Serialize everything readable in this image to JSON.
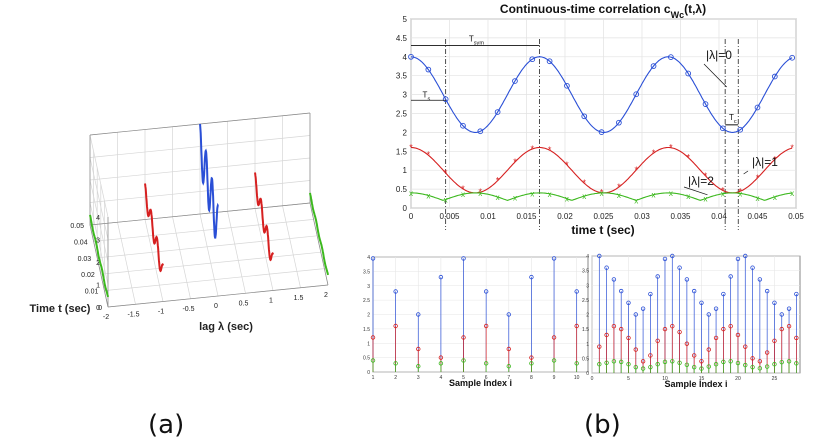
{
  "captions": {
    "a": "(a)",
    "b": "(b)"
  },
  "colors": {
    "lambda0": "#2a4fd6",
    "lambda1": "#d62020",
    "lambda2": "#3cb81e",
    "guide": "#222222"
  },
  "chart_data": [
    {
      "id": "a",
      "type": "line",
      "subtype": "3d",
      "title": "",
      "xlabel": "lag λ (sec)",
      "ylabel": "Time t (sec)",
      "zlabel": "",
      "x_ticks": [
        "-2",
        "-1.5",
        "-1",
        "-0.5",
        "0",
        "0.5",
        "1",
        "1.5",
        "2"
      ],
      "y_ticks": [
        "0",
        "0.01",
        "0.02",
        "0.03",
        "0.04",
        "0.05"
      ],
      "z_ticks": [
        "0",
        "1",
        "2",
        "3",
        "4"
      ],
      "grid": true,
      "series": [
        {
          "lag": -2,
          "color": "#3cb81e",
          "offset": 0.4,
          "amp": 0.05
        },
        {
          "lag": -1,
          "color": "#d62020",
          "offset": 1.2,
          "amp": 0.4
        },
        {
          "lag": 0,
          "color": "#2a4fd6",
          "offset": 3.0,
          "amp": 1.0
        },
        {
          "lag": 1,
          "color": "#d62020",
          "offset": 1.2,
          "amp": 0.4
        },
        {
          "lag": 2,
          "color": "#3cb81e",
          "offset": 0.4,
          "amp": 0.05
        }
      ]
    },
    {
      "id": "b-top",
      "type": "line",
      "title": "Continuous-time correlation c",
      "title_sub": "Wc",
      "title_args": "(t,λ)",
      "xlabel": "time t (sec)",
      "ylabel": "",
      "xlim": [
        0,
        0.05
      ],
      "ylim": [
        0,
        5
      ],
      "x_ticks": [
        "0",
        "0.005",
        "0.01",
        "0.015",
        "0.02",
        "0.025",
        "0.03",
        "0.035",
        "0.04",
        "0.045",
        "0.05"
      ],
      "y_ticks": [
        "0",
        "0.5",
        "1",
        "1.5",
        "2",
        "2.5",
        "3",
        "3.5",
        "4",
        "4.5",
        "5"
      ],
      "grid": true,
      "series": [
        {
          "name": "|λ|=0",
          "color": "#2a4fd6",
          "marker": "o",
          "offset": 3.0,
          "amp": 1.0,
          "period": 0.0167,
          "rectified": false
        },
        {
          "name": "|λ|=1",
          "color": "#d62020",
          "marker": "*",
          "offset": 1.0,
          "amp": 0.6,
          "period": 0.0167,
          "rectified": false
        },
        {
          "name": "|λ|=2",
          "color": "#3cb81e",
          "marker": "x",
          "offset": 0.2,
          "amp": 0.2,
          "period": 0.0167,
          "rectified": true
        }
      ],
      "annotations": [
        {
          "text": "T",
          "sub": "sym"
        },
        {
          "text": "T",
          "sub": "s"
        },
        {
          "text": "T",
          "sub": "c"
        }
      ],
      "guide_lines_x": [
        0.0045,
        0.0167,
        0.0408,
        0.0425
      ]
    },
    {
      "id": "b-bottom-left",
      "type": "scatter",
      "subtype": "stem",
      "title": "",
      "xlabel": "Sample Index i",
      "xlim": [
        1,
        10.5
      ],
      "ylim": [
        0,
        4
      ],
      "x_ticks": [
        "1",
        "2",
        "3",
        "4",
        "5",
        "6",
        "7",
        "8",
        "9",
        "10"
      ],
      "y_ticks": [
        "0",
        "0.5",
        "1",
        "1.5",
        "2",
        "2.5",
        "3",
        "3.5",
        "4"
      ],
      "grid": true,
      "x": [
        1,
        2,
        3,
        4,
        5,
        6,
        7,
        8,
        9,
        10
      ],
      "series": [
        {
          "color": "#2a4fd6",
          "values": [
            3.95,
            2.8,
            2.0,
            3.3,
            3.95,
            2.8,
            2.0,
            3.3,
            3.95,
            2.8
          ]
        },
        {
          "color": "#d62020",
          "values": [
            1.2,
            1.6,
            0.8,
            0.5,
            1.2,
            1.6,
            0.8,
            0.5,
            1.2,
            1.6
          ]
        },
        {
          "color": "#3cb81e",
          "values": [
            0.4,
            0.3,
            0.2,
            0.3,
            0.4,
            0.3,
            0.2,
            0.3,
            0.4,
            0.3
          ]
        }
      ]
    },
    {
      "id": "b-bottom-right",
      "type": "scatter",
      "subtype": "stem",
      "title": "",
      "xlabel": "Sample Index i",
      "xlim": [
        0,
        28.5
      ],
      "ylim": [
        0,
        4
      ],
      "x_ticks": [
        "0",
        "5",
        "10",
        "15",
        "20",
        "25"
      ],
      "y_ticks": [
        "0",
        "0.5",
        "1",
        "1.5",
        "2",
        "2.5",
        "3",
        "3.5",
        "4"
      ],
      "grid": true,
      "x": [
        1,
        2,
        3,
        4,
        5,
        6,
        7,
        8,
        9,
        10,
        11,
        12,
        13,
        14,
        15,
        16,
        17,
        18,
        19,
        20,
        21,
        22,
        23,
        24,
        25,
        26,
        27,
        28
      ],
      "series": [
        {
          "color": "#2a4fd6",
          "values": [
            4.0,
            3.6,
            3.2,
            2.8,
            2.4,
            2.0,
            2.2,
            2.7,
            3.3,
            3.9,
            4.0,
            3.6,
            3.2,
            2.8,
            2.4,
            2.0,
            2.2,
            2.7,
            3.3,
            3.9,
            4.0,
            3.6,
            3.2,
            2.8,
            2.4,
            2.0,
            2.2,
            2.7
          ]
        },
        {
          "color": "#d62020",
          "values": [
            0.9,
            1.3,
            1.6,
            1.5,
            1.2,
            0.8,
            0.4,
            0.6,
            1.1,
            1.5,
            1.6,
            1.4,
            1.0,
            0.6,
            0.4,
            0.8,
            1.2,
            1.5,
            1.6,
            1.3,
            0.9,
            0.5,
            0.4,
            0.7,
            1.1,
            1.5,
            1.6,
            1.2
          ]
        },
        {
          "color": "#3cb81e",
          "values": [
            0.3,
            0.35,
            0.4,
            0.38,
            0.3,
            0.2,
            0.15,
            0.2,
            0.3,
            0.38,
            0.4,
            0.35,
            0.28,
            0.2,
            0.15,
            0.22,
            0.3,
            0.38,
            0.4,
            0.34,
            0.27,
            0.2,
            0.16,
            0.22,
            0.3,
            0.37,
            0.4,
            0.33
          ]
        }
      ]
    }
  ]
}
